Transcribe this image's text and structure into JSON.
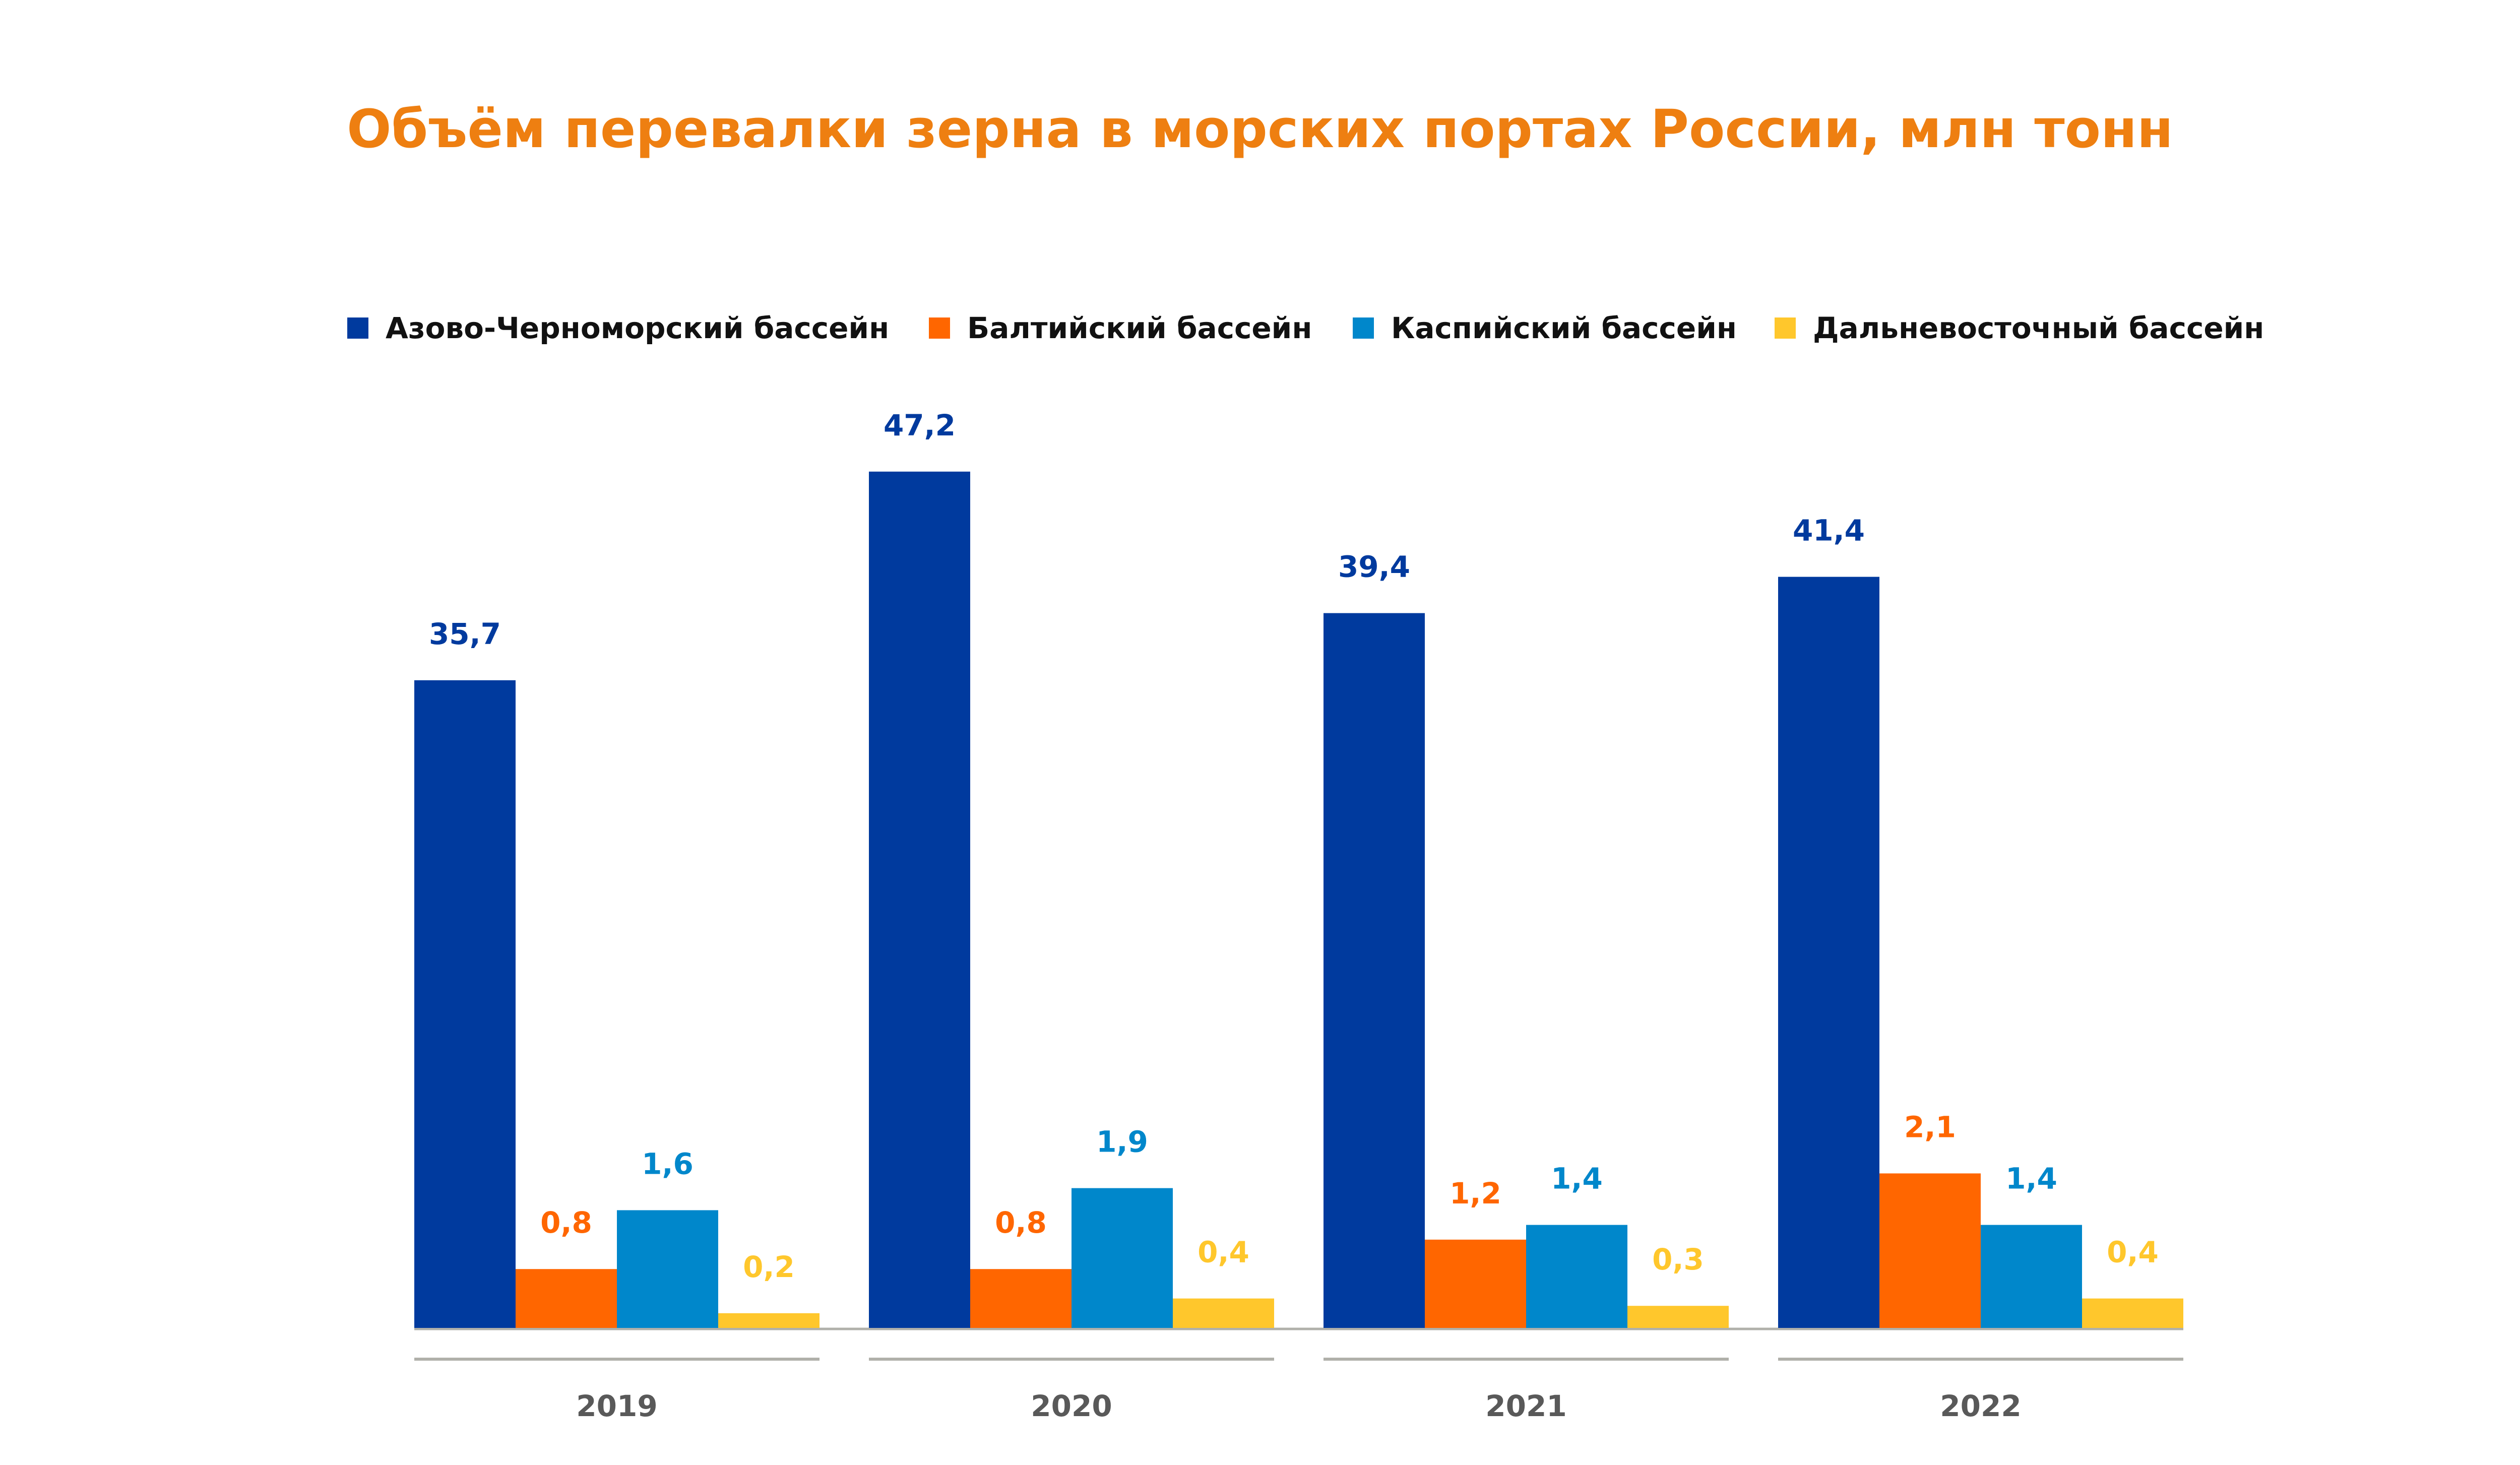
{
  "chart_data": {
    "type": "bar",
    "title": "Объём перевалки зерна в морских портах России, млн тонн",
    "categories": [
      "2019",
      "2020",
      "2021",
      "2022"
    ],
    "series": [
      {
        "name": "Азово-Черноморский бассейн",
        "color": "#003A9E",
        "values": [
          35.7,
          47.2,
          39.4,
          41.4
        ],
        "labels": [
          "35,7",
          "47,2",
          "39,4",
          "41,4"
        ]
      },
      {
        "name": "Балтийский бассейн",
        "color": "#FF6600",
        "values": [
          0.8,
          0.8,
          1.2,
          2.1
        ],
        "labels": [
          "0,8",
          "0,8",
          "1,2",
          "2,1"
        ]
      },
      {
        "name": "Каспийский бассейн",
        "color": "#0087CB",
        "values": [
          1.6,
          1.9,
          1.4,
          1.4
        ],
        "labels": [
          "1,6",
          "1,9",
          "1,4",
          "1,4"
        ]
      },
      {
        "name": "Дальневосточный бассейн",
        "color": "#FFC72C",
        "values": [
          0.2,
          0.4,
          0.3,
          0.4
        ],
        "labels": [
          "0,2",
          "0,4",
          "0,3",
          "0,4"
        ]
      }
    ],
    "legend_position": "top",
    "grid": false,
    "y_axis_visible": false,
    "data_labels": true,
    "axis_line_color": "#B0B0AA",
    "category_label_color": "#595959"
  }
}
